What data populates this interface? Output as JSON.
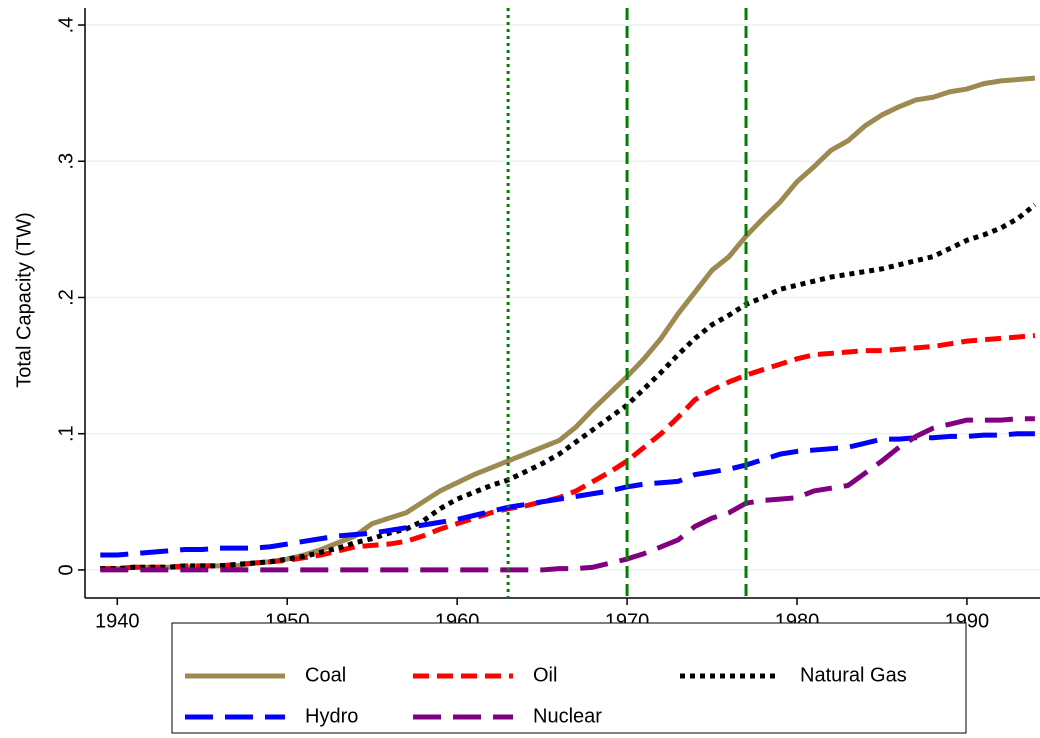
{
  "chart_data": {
    "type": "line",
    "y_axis_label": "Total Capacity (TW)",
    "x": [
      1939,
      1940,
      1941,
      1942,
      1943,
      1944,
      1945,
      1946,
      1947,
      1948,
      1949,
      1950,
      1951,
      1952,
      1953,
      1954,
      1955,
      1956,
      1957,
      1958,
      1959,
      1960,
      1961,
      1962,
      1963,
      1964,
      1965,
      1966,
      1967,
      1968,
      1969,
      1970,
      1971,
      1972,
      1973,
      1974,
      1975,
      1976,
      1977,
      1978,
      1979,
      1980,
      1981,
      1982,
      1983,
      1984,
      1985,
      1986,
      1987,
      1988,
      1989,
      1990,
      1991,
      1992,
      1993,
      1994
    ],
    "series": [
      {
        "name": "Coal",
        "color": "#9c8a50",
        "style": "solid",
        "values": [
          0.001,
          0.001,
          0.002,
          0.002,
          0.002,
          0.002,
          0.003,
          0.003,
          0.003,
          0.005,
          0.006,
          0.008,
          0.011,
          0.015,
          0.02,
          0.025,
          0.034,
          0.038,
          0.042,
          0.05,
          0.058,
          0.064,
          0.07,
          0.075,
          0.08,
          0.085,
          0.09,
          0.095,
          0.105,
          0.118,
          0.13,
          0.142,
          0.155,
          0.17,
          0.188,
          0.204,
          0.22,
          0.23,
          0.245,
          0.258,
          0.27,
          0.285,
          0.296,
          0.308,
          0.315,
          0.326,
          0.334,
          0.34,
          0.345,
          0.347,
          0.351,
          0.353,
          0.357,
          0.359,
          0.36,
          0.361
        ]
      },
      {
        "name": "Oil",
        "color": "#ff0000",
        "style": "dash",
        "values": [
          0.001,
          0.001,
          0.002,
          0.002,
          0.002,
          0.003,
          0.003,
          0.003,
          0.004,
          0.005,
          0.006,
          0.007,
          0.009,
          0.011,
          0.014,
          0.017,
          0.018,
          0.019,
          0.021,
          0.025,
          0.03,
          0.034,
          0.038,
          0.042,
          0.045,
          0.047,
          0.05,
          0.053,
          0.058,
          0.065,
          0.072,
          0.08,
          0.09,
          0.1,
          0.112,
          0.125,
          0.132,
          0.138,
          0.143,
          0.147,
          0.151,
          0.155,
          0.158,
          0.159,
          0.16,
          0.161,
          0.161,
          0.162,
          0.163,
          0.164,
          0.166,
          0.168,
          0.169,
          0.17,
          0.171,
          0.172
        ]
      },
      {
        "name": "Natural Gas",
        "color": "#000000",
        "style": "dot",
        "values": [
          0.001,
          0.001,
          0.002,
          0.002,
          0.002,
          0.003,
          0.003,
          0.003,
          0.004,
          0.005,
          0.006,
          0.008,
          0.01,
          0.013,
          0.016,
          0.02,
          0.023,
          0.027,
          0.03,
          0.036,
          0.045,
          0.052,
          0.057,
          0.062,
          0.066,
          0.072,
          0.078,
          0.085,
          0.094,
          0.103,
          0.112,
          0.121,
          0.133,
          0.145,
          0.158,
          0.17,
          0.18,
          0.187,
          0.195,
          0.2,
          0.206,
          0.209,
          0.212,
          0.215,
          0.217,
          0.219,
          0.221,
          0.224,
          0.227,
          0.23,
          0.236,
          0.242,
          0.246,
          0.251,
          0.258,
          0.268
        ]
      },
      {
        "name": "Hydro",
        "color": "#0000ff",
        "style": "longdash",
        "values": [
          0.011,
          0.011,
          0.012,
          0.013,
          0.014,
          0.015,
          0.015,
          0.016,
          0.016,
          0.016,
          0.017,
          0.019,
          0.021,
          0.023,
          0.025,
          0.026,
          0.027,
          0.029,
          0.031,
          0.033,
          0.035,
          0.037,
          0.04,
          0.043,
          0.046,
          0.048,
          0.05,
          0.052,
          0.054,
          0.056,
          0.058,
          0.061,
          0.063,
          0.064,
          0.065,
          0.07,
          0.072,
          0.074,
          0.077,
          0.081,
          0.085,
          0.087,
          0.088,
          0.089,
          0.09,
          0.093,
          0.096,
          0.096,
          0.097,
          0.097,
          0.098,
          0.098,
          0.099,
          0.099,
          0.1,
          0.1
        ]
      },
      {
        "name": "Nuclear",
        "color": "#800080",
        "style": "longdash",
        "values": [
          0,
          0,
          0,
          0,
          0,
          0,
          0,
          0,
          0,
          0,
          0,
          0,
          0,
          0,
          0,
          0,
          0,
          0,
          0,
          0,
          0,
          0,
          0,
          0,
          0,
          0,
          0,
          0.001,
          0.001,
          0.002,
          0.005,
          0.008,
          0.012,
          0.017,
          0.022,
          0.032,
          0.038,
          0.042,
          0.049,
          0.051,
          0.052,
          0.053,
          0.058,
          0.06,
          0.062,
          0.071,
          0.08,
          0.09,
          0.098,
          0.104,
          0.107,
          0.11,
          0.11,
          0.11,
          0.111,
          0.111
        ]
      }
    ],
    "reference_lines": [
      {
        "x": 1963,
        "style": "dot",
        "color": "#008000"
      },
      {
        "x": 1970,
        "style": "dash",
        "color": "#008000"
      },
      {
        "x": 1977,
        "style": "dash",
        "color": "#008000"
      }
    ],
    "xlim": [
      1938.1,
      1994.3
    ],
    "xticks": [
      1940,
      1950,
      1960,
      1970,
      1980,
      1990
    ],
    "ylim": [
      -0.0206,
      0.4125
    ],
    "yticks": [
      0,
      {
        "value": 0.1,
        "label": ".1"
      },
      {
        "value": 0.2,
        "label": ".2"
      },
      {
        "value": 0.3,
        "label": ".3"
      },
      {
        "value": 0.4,
        "label": ".4"
      }
    ],
    "grid": true,
    "legend_position": "bottom"
  }
}
